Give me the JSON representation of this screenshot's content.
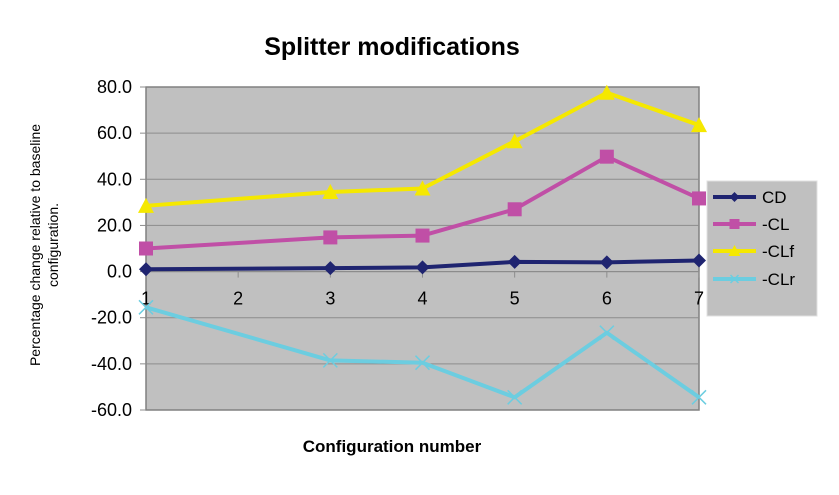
{
  "chart_data": {
    "type": "line",
    "title": "Splitter modifications",
    "xlabel": "Configuration number",
    "ylabel": "Percentage change relative to baseline configuration.",
    "ylabel_lines": [
      "Percentage change relative to baseline",
      "configuration."
    ],
    "categories": [
      "1",
      "2",
      "3",
      "4",
      "5",
      "6",
      "7"
    ],
    "ylim": [
      -60,
      80
    ],
    "yticks": [
      "80.0",
      "60.0",
      "40.0",
      "20.0",
      "0.0",
      "-20.0",
      "-40.0",
      "-60.0"
    ],
    "ytick_values": [
      80,
      60,
      40,
      20,
      0,
      -20,
      -40,
      -60
    ],
    "grid": true,
    "legend_position": "right",
    "plot_background": "#C0C0C0",
    "series": [
      {
        "name": "CD",
        "color": "#1F2470",
        "marker": "diamond",
        "values": [
          1.0,
          null,
          1.5,
          1.8,
          4.2,
          4.0,
          4.8
        ]
      },
      {
        "name": "-CL",
        "color": "#C04FA6",
        "marker": "square",
        "values": [
          10.0,
          null,
          14.8,
          15.6,
          27.0,
          49.8,
          31.7
        ]
      },
      {
        "name": "-CLf",
        "color": "#F5E800",
        "marker": "triangle",
        "values": [
          28.5,
          null,
          34.5,
          36.0,
          56.5,
          77.5,
          63.5
        ]
      },
      {
        "name": "-CLr",
        "color": "#6CCDE0",
        "marker": "x",
        "values": [
          -15.5,
          null,
          -38.5,
          -39.5,
          -54.5,
          -26.5,
          -54.5
        ]
      }
    ]
  }
}
